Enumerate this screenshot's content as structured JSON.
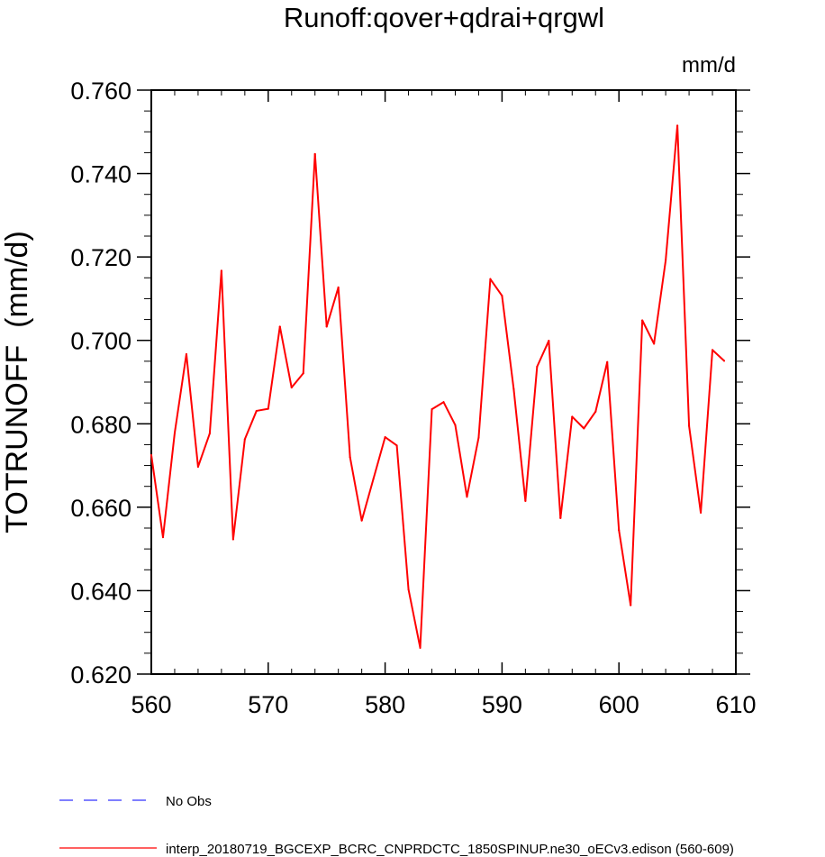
{
  "chart_data": {
    "type": "line",
    "title": "Runoff:qover+qdrai+qrgwl",
    "units_label": "mm/d",
    "ylabel": "TOTRUNOFF  (mm/d)",
    "xlabel": "",
    "xlim": [
      560,
      610
    ],
    "ylim": [
      0.62,
      0.76
    ],
    "x_ticks": [
      560,
      570,
      580,
      590,
      600,
      610
    ],
    "x_tick_labels": [
      "560",
      "570",
      "580",
      "590",
      "600",
      "610"
    ],
    "y_ticks": [
      0.62,
      0.64,
      0.66,
      0.68,
      0.7,
      0.72,
      0.74,
      0.76
    ],
    "y_tick_labels": [
      "0.620",
      "0.640",
      "0.660",
      "0.680",
      "0.700",
      "0.720",
      "0.740",
      "0.760"
    ],
    "grid": false,
    "series": [
      {
        "name": "interp_20180719_BGCEXP_BCRC_CNPRDCTC_1850SPINUP.ne30_oECv3.edison (560-609)",
        "color": "#ff0000",
        "style": "solid",
        "x": [
          560,
          561,
          562,
          563,
          564,
          565,
          566,
          567,
          568,
          569,
          570,
          571,
          572,
          573,
          574,
          575,
          576,
          577,
          578,
          579,
          580,
          581,
          582,
          583,
          584,
          585,
          586,
          587,
          588,
          589,
          590,
          591,
          592,
          593,
          594,
          595,
          596,
          597,
          598,
          599,
          600,
          601,
          602,
          603,
          604,
          605,
          606,
          607,
          608,
          609
        ],
        "values": [
          0.6725,
          0.6528,
          0.6778,
          0.6967,
          0.6697,
          0.6777,
          0.7167,
          0.6523,
          0.6763,
          0.6831,
          0.6836,
          0.7033,
          0.6887,
          0.6921,
          0.7447,
          0.7033,
          0.7127,
          0.672,
          0.6568,
          0.6668,
          0.6768,
          0.6748,
          0.6403,
          0.6263,
          0.6835,
          0.6852,
          0.6797,
          0.6625,
          0.6767,
          0.7147,
          0.7107,
          0.6883,
          0.6615,
          0.6937,
          0.6999,
          0.6574,
          0.6817,
          0.6789,
          0.6829,
          0.6948,
          0.6545,
          0.6365,
          0.7048,
          0.6992,
          0.7192,
          0.7515,
          0.6795,
          0.6587,
          0.6977,
          0.6951
        ]
      }
    ],
    "legend": {
      "placement": "bottom-left",
      "entries": [
        {
          "label": "No Obs",
          "color": "#3333ff",
          "style": "dashed"
        },
        {
          "label": "interp_20180719_BGCEXP_BCRC_CNPRDCTC_1850SPINUP.ne30_oECv3.edison (560-609)",
          "color": "#ff0000",
          "style": "solid"
        }
      ]
    }
  }
}
